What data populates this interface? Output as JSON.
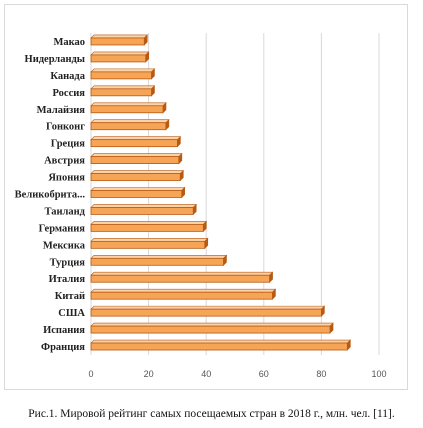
{
  "caption": "Рис.1. Мировой рейтинг самых посещаемых стран в 2018 г., млн. чел. [11].",
  "colors": {
    "bar_fill": "#f6a455",
    "bar_edge": "#b85a14",
    "bar_top": "#fbd3a8",
    "grid": "#d9d9d9"
  },
  "chart_data": {
    "type": "bar",
    "orientation": "horizontal",
    "title": "",
    "xlabel": "",
    "ylabel": "",
    "categories": [
      "Макао",
      "Нидерланды",
      "Канада",
      "Россия",
      "Малайзия",
      "Гонконг",
      "Греция",
      "Австрия",
      "Япония",
      "Великобрита...",
      "Таиланд",
      "Германия",
      "Мексика",
      "Турция",
      "Италия",
      "Китай",
      "США",
      "Испания",
      "Франция"
    ],
    "values": [
      18.5,
      19,
      21,
      21,
      25,
      26,
      30,
      30.5,
      31,
      31.5,
      35.5,
      39,
      39.5,
      46,
      62,
      63,
      80,
      83,
      89
    ],
    "xlim": [
      0,
      100
    ],
    "xticks": [
      "0",
      "20",
      "40",
      "60",
      "80",
      "100"
    ],
    "grid": "vertical",
    "style": "3d"
  }
}
